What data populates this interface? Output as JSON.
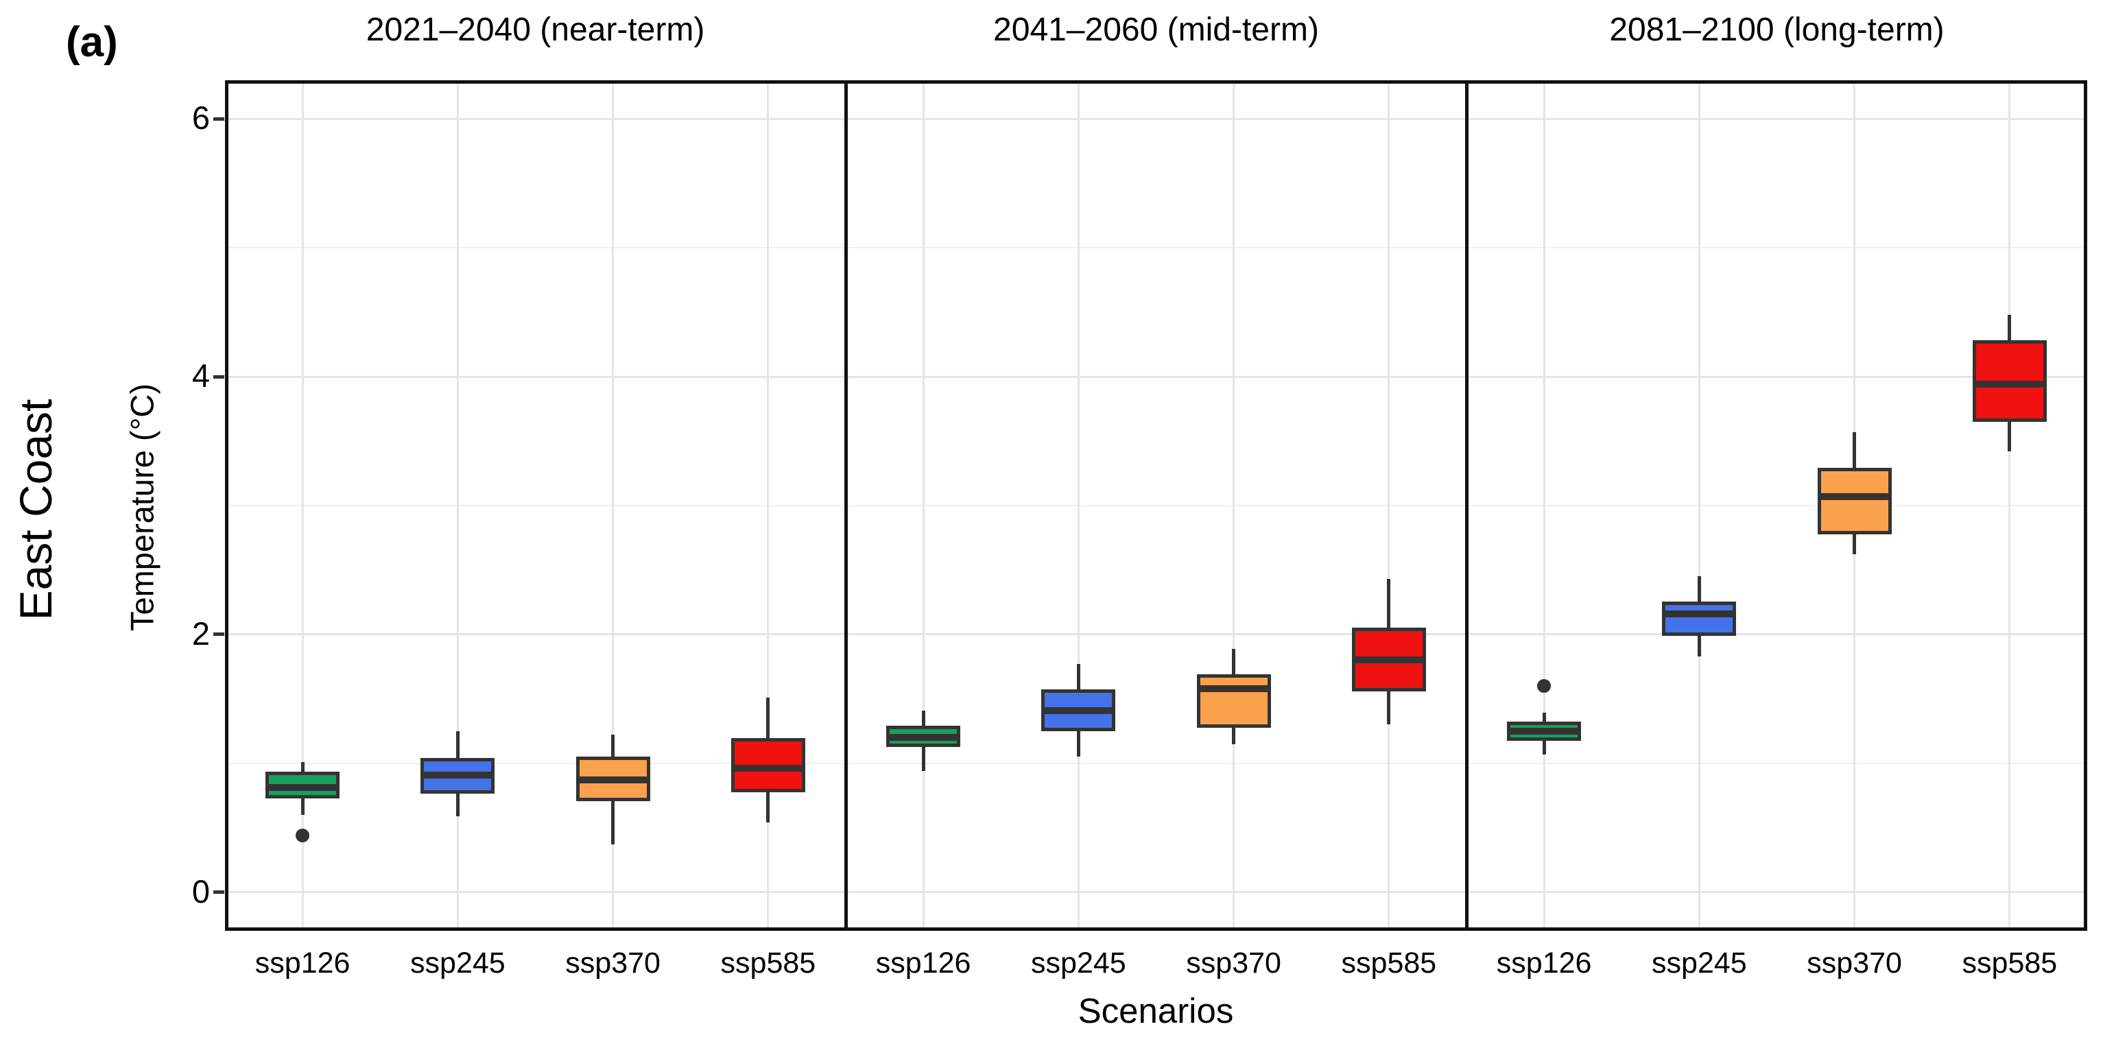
{
  "figure_label": "(a)",
  "row_label": "East Coast",
  "axes": {
    "y_title": "Temperature (°C)",
    "x_title": "Scenarios",
    "y_ticks": [
      0,
      2,
      4,
      6
    ],
    "y_minor_ticks": [
      1,
      3,
      5
    ],
    "y_range": [
      -0.3,
      6.3
    ],
    "grid": "major-and-minor-horizontal, major-vertical"
  },
  "colors": {
    "ssp126": "#12a35a",
    "ssp245": "#4473e9",
    "ssp370": "#f9a14d",
    "ssp585": "#f01111",
    "stroke": "#333333",
    "grid_major": "#e5e5e5",
    "grid_minor": "#f1f1f1",
    "panel_border": "#111111"
  },
  "chart_data": {
    "type": "boxplot",
    "categories": [
      "ssp126",
      "ssp245",
      "ssp370",
      "ssp585"
    ],
    "ylabel": "Temperature (°C)",
    "xlabel": "Scenarios",
    "ylim": [
      -0.3,
      6.3
    ],
    "row_label": "East Coast",
    "panels": [
      {
        "title": "2021–2040 (near-term)",
        "boxes": [
          {
            "scenario": "ssp126",
            "whisker_low": 0.6,
            "q1": 0.74,
            "median": 0.81,
            "q3": 0.92,
            "whisker_high": 1.01,
            "outliers": [
              0.44
            ]
          },
          {
            "scenario": "ssp245",
            "whisker_low": 0.59,
            "q1": 0.78,
            "median": 0.91,
            "q3": 1.03,
            "whisker_high": 1.25,
            "outliers": []
          },
          {
            "scenario": "ssp370",
            "whisker_low": 0.37,
            "q1": 0.72,
            "median": 0.87,
            "q3": 1.04,
            "whisker_high": 1.22,
            "outliers": []
          },
          {
            "scenario": "ssp585",
            "whisker_low": 0.54,
            "q1": 0.79,
            "median": 0.96,
            "q3": 1.18,
            "whisker_high": 1.51,
            "outliers": []
          }
        ]
      },
      {
        "title": "2041–2060 (mid-term)",
        "boxes": [
          {
            "scenario": "ssp126",
            "whisker_low": 0.94,
            "q1": 1.14,
            "median": 1.2,
            "q3": 1.28,
            "whisker_high": 1.41,
            "outliers": []
          },
          {
            "scenario": "ssp245",
            "whisker_low": 1.05,
            "q1": 1.26,
            "median": 1.41,
            "q3": 1.56,
            "whisker_high": 1.77,
            "outliers": []
          },
          {
            "scenario": "ssp370",
            "whisker_low": 1.15,
            "q1": 1.29,
            "median": 1.58,
            "q3": 1.68,
            "whisker_high": 1.89,
            "outliers": []
          },
          {
            "scenario": "ssp585",
            "whisker_low": 1.3,
            "q1": 1.57,
            "median": 1.8,
            "q3": 2.04,
            "whisker_high": 2.43,
            "outliers": []
          }
        ]
      },
      {
        "title": "2081–2100 (long-term)",
        "boxes": [
          {
            "scenario": "ssp126",
            "whisker_low": 1.07,
            "q1": 1.19,
            "median": 1.25,
            "q3": 1.31,
            "whisker_high": 1.39,
            "outliers": [
              1.6
            ]
          },
          {
            "scenario": "ssp245",
            "whisker_low": 1.83,
            "q1": 2.0,
            "median": 2.16,
            "q3": 2.24,
            "whisker_high": 2.45,
            "outliers": []
          },
          {
            "scenario": "ssp370",
            "whisker_low": 2.62,
            "q1": 2.79,
            "median": 3.07,
            "q3": 3.28,
            "whisker_high": 3.57,
            "outliers": []
          },
          {
            "scenario": "ssp585",
            "whisker_low": 3.42,
            "q1": 3.66,
            "median": 3.94,
            "q3": 4.27,
            "whisker_high": 4.48,
            "outliers": []
          }
        ]
      }
    ]
  }
}
